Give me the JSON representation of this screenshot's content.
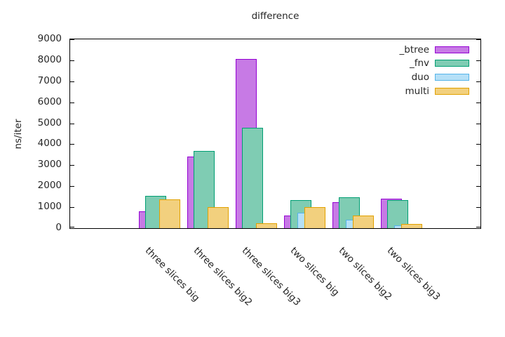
{
  "chart_data": {
    "type": "bar",
    "title": "difference",
    "ylabel": "ns/iter",
    "ylim": [
      0,
      9000
    ],
    "yticks": [
      0,
      1000,
      2000,
      3000,
      4000,
      5000,
      6000,
      7000,
      8000,
      9000
    ],
    "grid": false,
    "legend_position": "top-right-inside",
    "categories": [
      "three slices big",
      "three slices big2",
      "three slices big3",
      "two slices big",
      "two slices big2",
      "two slices big3"
    ],
    "series": [
      {
        "name": "_btree",
        "fill": "#c77ae5",
        "border": "#9400d3",
        "values": [
          800,
          3400,
          8050,
          590,
          1240,
          1410
        ]
      },
      {
        "name": "_fnv",
        "fill": "#7fccb3",
        "border": "#009e73",
        "values": [
          1550,
          3680,
          4800,
          1340,
          1480,
          1330
        ]
      },
      {
        "name": "duo",
        "fill": "#b5e0f7",
        "border": "#56b4e9",
        "values": [
          0,
          0,
          0,
          750,
          400,
          150
        ]
      },
      {
        "name": "multi",
        "fill": "#f2d07e",
        "border": "#e1a100",
        "values": [
          1380,
          1000,
          220,
          1010,
          600,
          210
        ]
      }
    ]
  }
}
